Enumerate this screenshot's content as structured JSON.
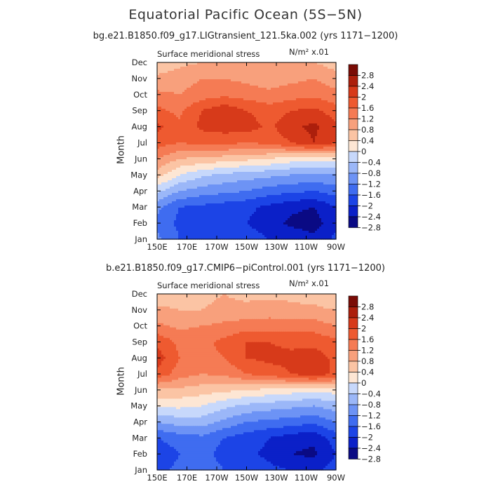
{
  "title": "Equatorial Pacific Ocean (5S−5N)",
  "colors": {
    "palette": [
      "#0a0a84",
      "#0b20c8",
      "#1c44e6",
      "#3f6cf0",
      "#6d93f5",
      "#9bb7f8",
      "#c7d8fb",
      "#fde6d4",
      "#fbc4a4",
      "#f8a07c",
      "#f57b54",
      "#ee5a30",
      "#d73a1a",
      "#ac1f0c",
      "#7a0c06"
    ]
  },
  "colorbar_labels": [
    "2.8",
    "2.4",
    "2",
    "1.6",
    "1.2",
    "0.8",
    "0.4",
    "0",
    "−0.4",
    "−0.8",
    "−1.2",
    "−1.6",
    "−2",
    "−2.4",
    "−2.8"
  ],
  "chart_data": [
    {
      "type": "heatmap",
      "title": "bg.e21.B1850.f09_g17.LIGtransient_121.5ka.002 (yrs 1171−1200)",
      "left_subtitle": "Surface meridional stress",
      "right_subtitle": "N/m² x.01",
      "ylabel": "Month",
      "xlabel": "",
      "x_ticks": [
        "150E",
        "170E",
        "170W",
        "150W",
        "130W",
        "110W",
        "90W"
      ],
      "y_ticks": [
        "Jan",
        "Feb",
        "Mar",
        "Apr",
        "May",
        "Jun",
        "Jul",
        "Aug",
        "Sep",
        "Oct",
        "Nov",
        "Dec"
      ],
      "levels": [
        -2.8,
        -2.4,
        -2,
        -1.6,
        -1.2,
        -0.8,
        -0.4,
        0,
        0.4,
        0.8,
        1.2,
        1.6,
        2,
        2.4,
        2.8
      ],
      "grid": [
        [
          -1.5,
          -2.0,
          -2.1,
          -2.1,
          -2.2,
          -2.4,
          -2.5,
          -2.7,
          -2.3
        ],
        [
          -1.7,
          -2.1,
          -2.2,
          -2.3,
          -2.4,
          -2.6,
          -2.9,
          -3.0,
          -2.5
        ],
        [
          -1.5,
          -2.0,
          -2.1,
          -2.2,
          -2.3,
          -2.5,
          -2.7,
          -2.8,
          -2.4
        ],
        [
          -0.7,
          -1.2,
          -1.4,
          -1.5,
          -1.6,
          -1.8,
          -1.9,
          -2.0,
          -1.8
        ],
        [
          0.2,
          -0.4,
          -0.7,
          -0.9,
          -1.0,
          -1.1,
          -1.2,
          -1.3,
          -1.2
        ],
        [
          0.8,
          0.4,
          0.3,
          0.2,
          0.1,
          0.0,
          -0.2,
          -0.3,
          -0.2
        ],
        [
          1.4,
          1.2,
          1.3,
          1.3,
          1.2,
          1.3,
          1.6,
          2.0,
          1.6
        ],
        [
          1.7,
          1.3,
          1.7,
          1.8,
          1.8,
          1.5,
          1.9,
          2.1,
          1.7
        ],
        [
          1.3,
          1.1,
          1.6,
          1.9,
          1.6,
          1.4,
          1.6,
          1.7,
          1.4
        ],
        [
          0.9,
          0.8,
          1.0,
          1.1,
          1.0,
          0.9,
          1.0,
          1.1,
          0.9
        ],
        [
          0.5,
          0.6,
          0.8,
          0.8,
          0.7,
          0.6,
          0.7,
          0.8,
          0.6
        ],
        [
          0.1,
          0.3,
          0.4,
          0.4,
          0.4,
          0.4,
          0.4,
          0.4,
          0.2
        ]
      ]
    },
    {
      "type": "heatmap",
      "title": "b.e21.B1850.f09_g17.CMIP6−piControl.001 (yrs 1171−1200)",
      "left_subtitle": "Surface meridional stress",
      "right_subtitle": "N/m² x.01",
      "ylabel": "Month",
      "xlabel": "",
      "x_ticks": [
        "150E",
        "170E",
        "170W",
        "150W",
        "130W",
        "110W",
        "90W"
      ],
      "y_ticks": [
        "Jan",
        "Feb",
        "Mar",
        "Apr",
        "May",
        "Jun",
        "Jul",
        "Aug",
        "Sep",
        "Oct",
        "Nov",
        "Dec"
      ],
      "levels": [
        -2.8,
        -2.4,
        -2,
        -1.6,
        -1.2,
        -0.8,
        -0.4,
        0,
        0.4,
        0.8,
        1.2,
        1.6,
        2,
        2.4,
        2.8
      ],
      "grid": [
        [
          -2.1,
          -1.9,
          -1.7,
          -2.0,
          -2.1,
          -2.3,
          -2.4,
          -2.5,
          -2.2
        ],
        [
          -2.3,
          -2.0,
          -1.8,
          -2.2,
          -2.3,
          -2.5,
          -2.8,
          -2.9,
          -2.4
        ],
        [
          -2.0,
          -1.8,
          -1.7,
          -2.0,
          -2.2,
          -2.4,
          -2.6,
          -2.7,
          -2.2
        ],
        [
          -1.2,
          -1.0,
          -1.0,
          -1.3,
          -1.6,
          -1.7,
          -1.8,
          -1.9,
          -1.6
        ],
        [
          -0.3,
          -0.3,
          -0.4,
          -0.7,
          -0.9,
          -1.0,
          -1.1,
          -1.2,
          -1.0
        ],
        [
          0.3,
          0.3,
          0.2,
          0.1,
          0.0,
          -0.1,
          -0.2,
          -0.3,
          -0.2
        ],
        [
          1.5,
          1.0,
          0.8,
          0.9,
          1.2,
          1.4,
          1.6,
          1.9,
          1.5
        ],
        [
          1.8,
          1.2,
          1.1,
          1.2,
          1.6,
          1.7,
          1.7,
          1.8,
          1.5
        ],
        [
          1.5,
          1.1,
          1.1,
          1.3,
          1.6,
          1.6,
          1.5,
          1.5,
          1.3
        ],
        [
          0.9,
          0.7,
          0.8,
          0.9,
          1.0,
          1.0,
          1.0,
          1.0,
          0.8
        ],
        [
          0.5,
          0.4,
          0.4,
          0.5,
          0.5,
          0.6,
          0.5,
          0.5,
          0.4
        ],
        [
          0.1,
          0.2,
          0.3,
          0.4,
          0.3,
          0.3,
          0.3,
          0.2,
          0.0
        ]
      ]
    }
  ]
}
